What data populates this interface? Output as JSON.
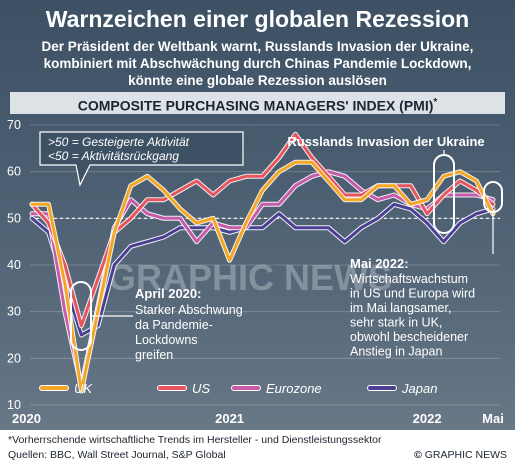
{
  "header": {
    "title": "Warnzeichen einer globalen Rezession",
    "subtitle": "Der Präsident der Weltbank warnt, Russlands Invasion der Ukraine, kombiniert mit Abschwächung durch Chinas Pandemie Lockdown, könnte eine globale Rezession auslösen",
    "band_title": "COMPOSITE PURCHASING MANAGERS' INDEX (PMI)",
    "band_mark": "*"
  },
  "key": {
    "line1": ">50 = Gesteigerte Aktivität",
    "line2": "<50 = Aktivitätsrückgang"
  },
  "annotations": {
    "invasion": "Russlands Invasion der Ukraine",
    "april": {
      "head": "April 2020:",
      "lines": [
        "Starker Abschwung",
        "da Pandemie-",
        "Lockdowns",
        "greifen"
      ]
    },
    "may": {
      "head": "Mai 2022:",
      "lines": [
        "Wirtschaftswachstum",
        "in US und Europa wird",
        "im Mai langsamer,",
        "sehr stark in UK,",
        "obwohl bescheidener",
        "Anstieg in Japan"
      ]
    }
  },
  "watermark": "GRAPHIC NEWS",
  "footer": {
    "note": "*Vorherrschende wirtschaftliche Trends im Hersteller - und Dienstleistungssektor",
    "sources": "Quellen: BBC, Wall Street Journal, S&P Global",
    "brand": "GRAPHIC NEWS",
    "copyright": "©"
  },
  "colors": {
    "UK": "#f5a623",
    "US": "#e8545e",
    "Eurozone": "#c75ba9",
    "Japan": "#4b3f93"
  },
  "chart_data": {
    "type": "line",
    "title": "COMPOSITE PURCHASING MANAGERS' INDEX (PMI)",
    "ylim": [
      10,
      70
    ],
    "yticks": [
      10,
      20,
      30,
      40,
      50,
      60,
      70
    ],
    "reference_line": 50,
    "x_labels": [
      "2020",
      "2021",
      "2022",
      "Mai"
    ],
    "x": [
      "2020-01",
      "2020-02",
      "2020-03",
      "2020-04",
      "2020-05",
      "2020-06",
      "2020-07",
      "2020-08",
      "2020-09",
      "2020-10",
      "2020-11",
      "2020-12",
      "2021-01",
      "2021-02",
      "2021-03",
      "2021-04",
      "2021-05",
      "2021-06",
      "2021-07",
      "2021-08",
      "2021-09",
      "2021-10",
      "2021-11",
      "2021-12",
      "2022-01",
      "2022-02",
      "2022-03",
      "2022-04",
      "2022-05"
    ],
    "series": [
      {
        "name": "UK",
        "values": [
          53,
          53,
          36,
          13,
          30,
          47,
          57,
          59,
          56,
          52,
          49,
          50,
          41,
          49,
          56,
          60,
          62,
          62,
          58,
          54,
          54,
          57,
          57,
          53,
          54,
          59,
          60,
          58,
          51
        ]
      },
      {
        "name": "US",
        "values": [
          53,
          49,
          40,
          27,
          37,
          47,
          50,
          54,
          54,
          56,
          58,
          55,
          58,
          59,
          59,
          63,
          68,
          63,
          59,
          55,
          55,
          57,
          57,
          57,
          51,
          55,
          58,
          56,
          53
        ]
      },
      {
        "name": "Eurozone",
        "values": [
          51,
          51,
          30,
          14,
          31,
          48,
          54,
          51,
          50,
          50,
          45,
          49,
          48,
          48,
          53,
          53,
          57,
          59,
          60,
          59,
          56,
          54,
          55,
          53,
          52,
          55,
          55,
          55,
          54
        ]
      },
      {
        "name": "Japan",
        "values": [
          50,
          47,
          36,
          25,
          27,
          40,
          44,
          45,
          46,
          48,
          48,
          48,
          47,
          48,
          48,
          51,
          48,
          48,
          48,
          45,
          48,
          50,
          53,
          52,
          49,
          45,
          49,
          51,
          52
        ]
      }
    ],
    "legend": [
      "UK",
      "US",
      "Eurozone",
      "Japan"
    ],
    "legend_position": "bottom"
  }
}
